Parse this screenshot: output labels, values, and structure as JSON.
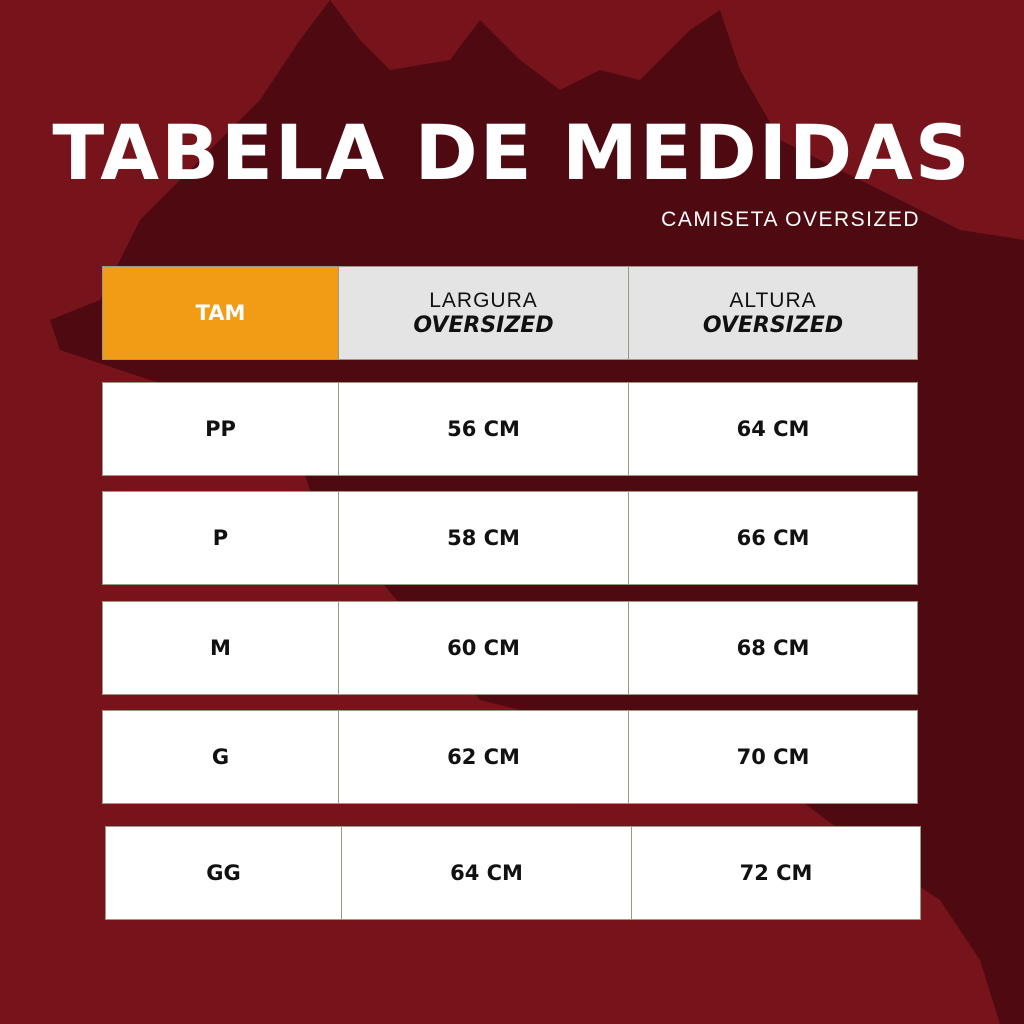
{
  "title": "TABELA DE MEDIDAS",
  "subtitle": "CAMISETA OVERSIZED",
  "colors": {
    "background": "#76131b",
    "map": "#4e0a10",
    "header_accent": "#f29b14"
  },
  "header": {
    "size": "TAM",
    "width_line1": "LARGURA",
    "width_line2": "OVERSIZED",
    "height_line1": "ALTURA",
    "height_line2": "OVERSIZED"
  },
  "rows": [
    {
      "size": "PP",
      "width": "56 CM",
      "height": "64 CM"
    },
    {
      "size": "P",
      "width": "58 CM",
      "height": "66 CM"
    },
    {
      "size": "M",
      "width": "60 CM",
      "height": "68 CM"
    },
    {
      "size": "G",
      "width": "62 CM",
      "height": "70 CM"
    },
    {
      "size": "GG",
      "width": "64 CM",
      "height": "72 CM"
    }
  ]
}
